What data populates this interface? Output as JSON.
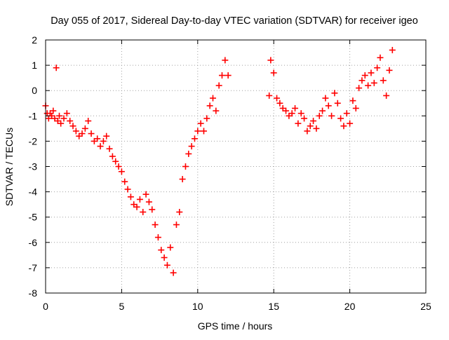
{
  "chart_data": {
    "type": "scatter",
    "title": "Day 055 of 2017, Sidereal Day-to-day VTEC variation (SDTVAR) for receiver igeo",
    "xlabel": "GPS time / hours",
    "ylabel": "SDTVAR / TECUs",
    "xlim": [
      0,
      25
    ],
    "ylim": [
      -8,
      2
    ],
    "xticks": [
      0,
      5,
      10,
      15,
      20,
      25
    ],
    "yticks": [
      -8,
      -7,
      -6,
      -5,
      -4,
      -3,
      -2,
      -1,
      0,
      1,
      2
    ],
    "grid": true,
    "marker": "+",
    "color": "#ff0000",
    "series": [
      {
        "name": "SDTVAR",
        "x": [
          0.0,
          0.1,
          0.2,
          0.3,
          0.4,
          0.5,
          0.6,
          0.7,
          0.8,
          0.9,
          1.0,
          1.2,
          1.4,
          1.6,
          1.8,
          2.0,
          2.2,
          2.4,
          2.6,
          2.8,
          3.0,
          3.2,
          3.4,
          3.6,
          3.8,
          4.0,
          4.2,
          4.4,
          4.6,
          4.8,
          5.0,
          5.2,
          5.4,
          5.6,
          5.8,
          6.0,
          6.2,
          6.4,
          6.6,
          6.8,
          7.0,
          7.2,
          7.4,
          7.6,
          7.8,
          8.0,
          8.2,
          8.4,
          8.6,
          8.8,
          9.0,
          9.2,
          9.4,
          9.6,
          9.8,
          10.0,
          10.2,
          10.4,
          10.6,
          10.8,
          11.0,
          11.2,
          11.4,
          11.6,
          11.8,
          12.0,
          14.7,
          14.8,
          15.0,
          15.2,
          15.4,
          15.6,
          15.8,
          16.0,
          16.2,
          16.4,
          16.6,
          16.8,
          17.0,
          17.2,
          17.4,
          17.6,
          17.8,
          18.0,
          18.2,
          18.4,
          18.6,
          18.8,
          19.0,
          19.2,
          19.4,
          19.6,
          19.8,
          20.0,
          20.2,
          20.4,
          20.6,
          20.8,
          21.0,
          21.2,
          21.4,
          21.6,
          21.8,
          22.0,
          22.2,
          22.4,
          22.6,
          22.8
        ],
        "y": [
          -0.6,
          -0.9,
          -1.1,
          -0.9,
          -1.0,
          -0.8,
          -1.1,
          0.9,
          -1.2,
          -1.0,
          -1.3,
          -1.1,
          -0.9,
          -1.2,
          -1.4,
          -1.6,
          -1.8,
          -1.7,
          -1.5,
          -1.2,
          -1.7,
          -2.0,
          -1.9,
          -2.2,
          -2.0,
          -1.8,
          -2.3,
          -2.6,
          -2.8,
          -3.0,
          -3.2,
          -3.6,
          -3.9,
          -4.2,
          -4.5,
          -4.6,
          -4.3,
          -4.8,
          -4.1,
          -4.4,
          -4.7,
          -5.3,
          -5.8,
          -6.3,
          -6.6,
          -6.9,
          -6.2,
          -7.2,
          -5.3,
          -4.8,
          -3.5,
          -3.0,
          -2.5,
          -2.2,
          -1.9,
          -1.6,
          -1.3,
          -1.6,
          -1.1,
          -0.6,
          -0.3,
          -0.8,
          0.2,
          0.6,
          1.2,
          0.6,
          -0.2,
          1.2,
          0.7,
          -0.3,
          -0.5,
          -0.7,
          -0.8,
          -1.0,
          -0.9,
          -0.7,
          -1.3,
          -0.9,
          -1.1,
          -1.6,
          -1.4,
          -1.2,
          -1.5,
          -1.0,
          -0.8,
          -0.3,
          -0.6,
          -1.0,
          -0.1,
          -0.5,
          -1.1,
          -1.4,
          -0.9,
          -1.3,
          -0.4,
          -0.7,
          0.1,
          0.4,
          0.6,
          0.2,
          0.7,
          0.3,
          0.9,
          1.3,
          0.4,
          -0.2,
          0.8,
          1.6
        ]
      }
    ]
  }
}
